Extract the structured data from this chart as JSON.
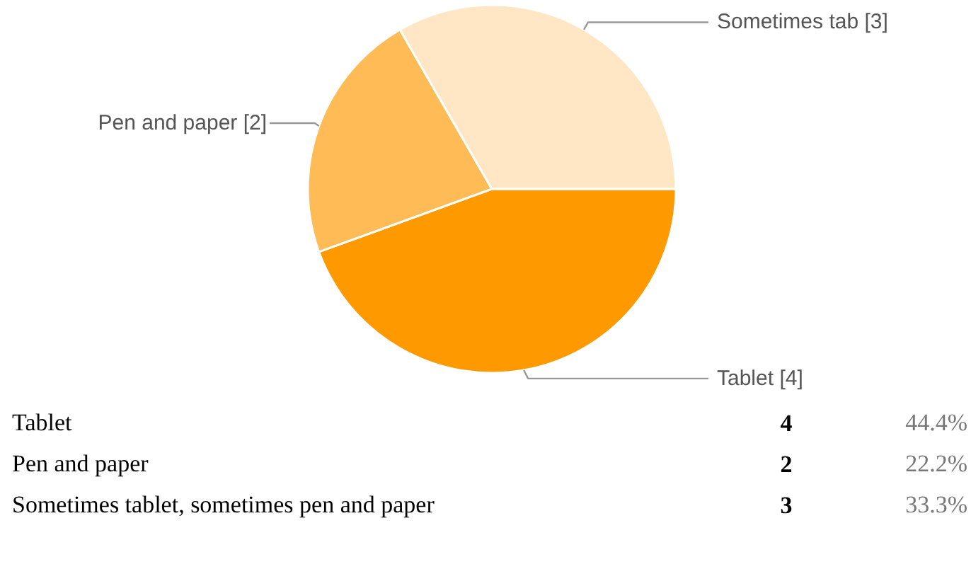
{
  "chart_data": [
    {
      "type": "pie",
      "categories": [
        "Tablet [4]",
        "Pen and paper [2]",
        "Sometimes tab [3]"
      ],
      "values": [
        4,
        2,
        3
      ],
      "colors": [
        "#ff9900",
        "#ffbb55",
        "#ffe6c4"
      ]
    },
    {
      "type": "other",
      "annotations": [
        "Tablet",
        "4",
        "44.4%",
        "Pen and paper",
        "2",
        "22.2%",
        "Sometimes tablet, sometimes pen and paper",
        "3",
        "33.3%"
      ]
    }
  ]
}
